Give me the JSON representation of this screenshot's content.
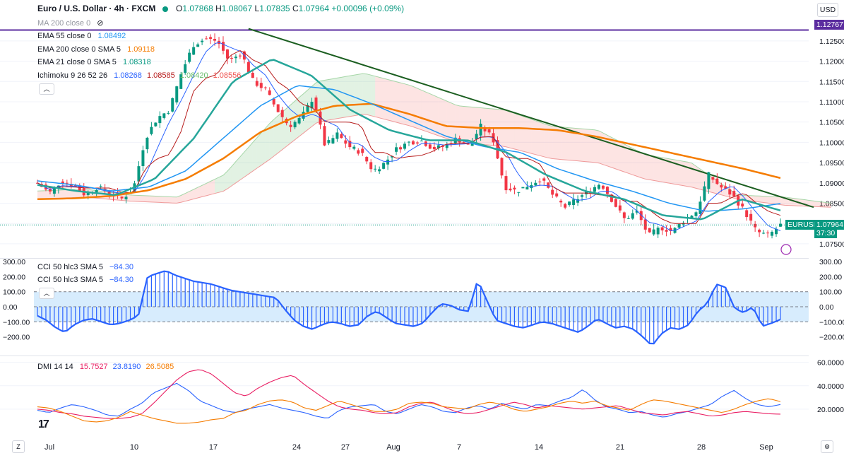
{
  "header": {
    "symbol": "Euro / U.S. Dollar · 4h · FXCM",
    "open_label": "O",
    "open": "1.07868",
    "high_label": "H",
    "high": "1.08067",
    "low_label": "L",
    "low": "1.07835",
    "close_label": "C",
    "close": "1.07964",
    "change": "+0.00096 (+0.09%)"
  },
  "currency_button": "USD",
  "legends": {
    "ma200": "MA 200 close 0",
    "ema55": {
      "label": "EMA 55 close 0",
      "value": "1.08492",
      "color": "#2962ff"
    },
    "ema200": {
      "label": "EMA 200 close 0 SMA 5",
      "value": "1.09118",
      "color": "#f57c00"
    },
    "ema21": {
      "label": "EMA 21 close 0 SMA 5",
      "value": "1.08318",
      "color": "#089981"
    },
    "ichimoku": {
      "label": "Ichimoku 9 26 52 26",
      "v1": "1.08268",
      "v2": "1.08585",
      "v3": "1.08420",
      "v4": "1.08556"
    },
    "cci1": {
      "label": "CCI 50 hlc3 SMA 5",
      "value": "−84.30"
    },
    "cci2": {
      "label": "CCI 50 hlc3 SMA 5",
      "value": "−84.30"
    },
    "dmi": {
      "label": "DMI 14 14",
      "v1": "15.7527",
      "v2": "23.8190",
      "v3": "26.5085"
    }
  },
  "price_tags": {
    "resistance": "1.12767",
    "current_symbol": "EURUSD",
    "current": "1.07964",
    "countdown": "37:30"
  },
  "colors": {
    "up": "#089981",
    "down": "#f23645",
    "ema200": "#f57c00",
    "ema55": "#2196f3",
    "ema21": "#26a69a",
    "tenkan": "#2962ff",
    "kijun": "#b71c1c",
    "trendline": "#1b5e20",
    "resistance": "#5b2c9f",
    "cci": "#2962ff",
    "dmi_plus": "#2962ff",
    "dmi_minus": "#e91e63",
    "adx": "#f57c00"
  },
  "bottom_left_icon": "Z",
  "bottom_right_icon": "gear-icon",
  "chart_data": [
    {
      "type": "candlestick",
      "title": "Euro / U.S. Dollar · 4h · FXCM",
      "ylim": [
        1.0715,
        1.1295
      ],
      "y_ticks": [
        "1.07500",
        "1.08000",
        "1.08500",
        "1.09000",
        "1.09500",
        "1.10000",
        "1.10500",
        "1.11000",
        "1.11500",
        "1.12000",
        "1.12500"
      ],
      "x_labels": [
        "Jul",
        "10",
        "17",
        "24",
        "27",
        "Aug",
        "7",
        "14",
        "21",
        "28",
        "Sep"
      ],
      "bars": 177,
      "close_path": [
        1.09,
        1.0875,
        1.0905,
        1.0895,
        1.087,
        1.089,
        1.0875,
        1.086,
        1.0885,
        1.101,
        1.106,
        1.108,
        1.117,
        1.124,
        1.1255,
        1.125,
        1.12,
        1.122,
        1.115,
        1.113,
        1.108,
        1.104,
        1.106,
        1.111,
        1.099,
        1.102,
        1.099,
        1.0975,
        1.093,
        1.095,
        1.0985,
        1.1,
        1.1005,
        1.0985,
        1.099,
        1.101,
        1.099,
        1.104,
        1.101,
        1.089,
        1.088,
        1.0895,
        1.091,
        1.087,
        1.084,
        1.086,
        1.088,
        1.09,
        1.0855,
        1.081,
        1.083,
        1.077,
        1.079,
        1.078,
        1.081,
        1.083,
        1.092,
        1.089,
        1.087,
        1.083,
        1.078,
        1.077,
        1.0796
      ],
      "ema200": [
        1.086,
        1.0862,
        1.0868,
        1.0882,
        1.091,
        1.096,
        1.1025,
        1.1065,
        1.109,
        1.1095,
        1.107,
        1.104,
        1.1035,
        1.1035,
        1.103,
        1.1015,
        1.0995,
        1.0975,
        1.0955,
        1.0935,
        1.0912
      ],
      "ema55": [
        1.0905,
        1.0895,
        1.088,
        1.089,
        1.093,
        1.101,
        1.109,
        1.114,
        1.113,
        1.1095,
        1.1055,
        1.1015,
        1.099,
        1.0975,
        1.0935,
        1.0905,
        1.088,
        1.085,
        1.083,
        1.0836,
        1.0849
      ],
      "ema21": [
        1.0895,
        1.088,
        1.087,
        1.091,
        1.101,
        1.115,
        1.1205,
        1.1165,
        1.108,
        1.103,
        1.1005,
        1.1005,
        1.0975,
        1.092,
        1.088,
        1.086,
        1.082,
        1.081,
        1.086,
        1.0832
      ],
      "cloud_top": [
        1.088,
        1.0885,
        1.087,
        1.0865,
        1.092,
        1.105,
        1.115,
        1.117,
        1.114,
        1.109,
        1.108,
        1.104,
        1.103,
        1.097,
        1.095,
        1.087,
        1.0865,
        1.085
      ],
      "cloud_bottom": [
        1.086,
        1.0865,
        1.0855,
        1.085,
        1.088,
        1.096,
        1.105,
        1.107,
        1.104,
        1.1,
        1.099,
        1.096,
        1.095,
        1.091,
        1.089,
        1.086,
        1.0845,
        1.084
      ],
      "trendline": {
        "from": 1.128,
        "to": 1.084
      },
      "resistance": 1.12767,
      "last_price": 1.07964
    },
    {
      "type": "area",
      "title": "CCI 50 hlc3 SMA 5",
      "ylim": [
        -310,
        310
      ],
      "y_ticks": [
        "300.00",
        "200.00",
        "100.00",
        "0.00",
        "−100.00",
        "−200.00"
      ],
      "band": [
        -100,
        100
      ],
      "values": [
        -60,
        -90,
        -140,
        -170,
        -120,
        -90,
        -80,
        -100,
        -120,
        -110,
        -90,
        -60,
        200,
        220,
        240,
        210,
        190,
        170,
        160,
        150,
        130,
        110,
        100,
        90,
        80,
        70,
        60,
        -20,
        -90,
        -130,
        -150,
        -120,
        -100,
        -110,
        -130,
        -120,
        -60,
        -30,
        -70,
        -110,
        -120,
        -130,
        -110,
        -40,
        20,
        10,
        -20,
        -30,
        180,
        40,
        -90,
        -110,
        -130,
        -140,
        -120,
        -100,
        -110,
        -130,
        -150,
        -170,
        -130,
        -80,
        -110,
        -140,
        -130,
        -150,
        -200,
        -260,
        -180,
        -140,
        -150,
        -120,
        -30,
        20,
        150,
        130,
        -10,
        -40,
        0,
        -130,
        -110,
        -84.3
      ]
    },
    {
      "type": "line",
      "title": "DMI 14 14",
      "ylim": [
        0,
        64
      ],
      "y_ticks": [
        "60.0000",
        "40.0000",
        "20.0000"
      ],
      "series": [
        {
          "name": "+DI",
          "values": [
            19,
            17,
            21,
            24,
            22,
            19,
            15,
            14,
            20,
            25,
            34,
            38,
            42,
            36,
            27,
            23,
            19,
            17,
            20,
            22,
            24,
            21,
            19,
            17,
            14,
            12,
            19,
            22,
            23,
            24,
            18,
            16,
            20,
            24,
            22,
            18,
            17,
            21,
            23,
            20,
            25,
            22,
            20,
            24,
            23,
            27,
            30,
            37,
            28,
            22,
            20,
            17,
            18,
            15,
            13,
            16,
            18,
            21,
            24,
            31,
            36,
            29,
            24,
            22,
            24
          ]
        },
        {
          "name": "−DI",
          "values": [
            20,
            19,
            17,
            16,
            14,
            13,
            12,
            12,
            13,
            16,
            25,
            35,
            45,
            52,
            54,
            50,
            42,
            34,
            31,
            38,
            43,
            47,
            49,
            41,
            34,
            27,
            22,
            20,
            19,
            17,
            16,
            17,
            22,
            25,
            26,
            22,
            18,
            16,
            17,
            20,
            23,
            26,
            24,
            21,
            23,
            22,
            21,
            20,
            21,
            22,
            23,
            20,
            17,
            16,
            15,
            17,
            18,
            16,
            14,
            15,
            17,
            18,
            17,
            16,
            15.75
          ]
        },
        {
          "name": "ADX",
          "values": [
            22,
            21,
            18,
            14,
            10,
            9,
            10,
            13,
            18,
            15,
            12,
            10,
            8,
            8,
            9,
            11,
            12,
            17,
            19,
            24,
            27,
            28,
            26,
            21,
            19,
            23,
            27,
            24,
            21,
            18,
            18,
            20,
            25,
            26,
            25,
            22,
            21,
            20,
            24,
            26,
            24,
            20,
            18,
            20,
            22,
            25,
            27,
            25,
            27,
            23,
            21,
            19,
            24,
            28,
            27,
            25,
            23,
            21,
            19,
            17,
            20,
            24,
            27,
            29,
            26.5
          ]
        }
      ]
    }
  ]
}
